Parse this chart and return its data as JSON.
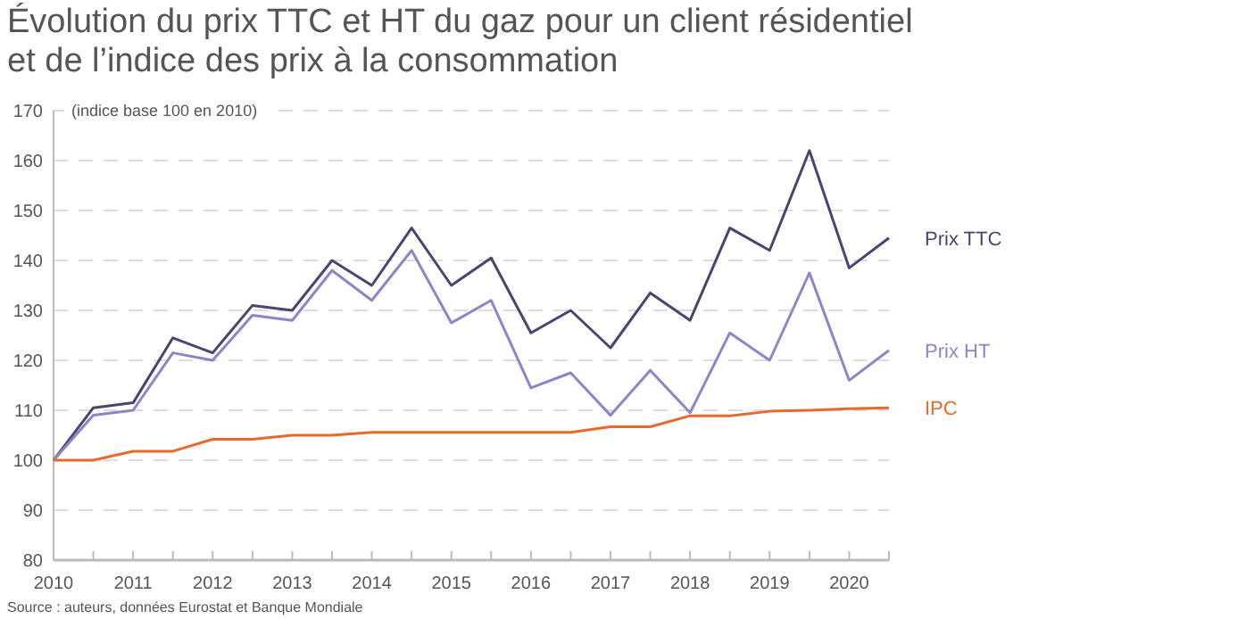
{
  "chart_data": {
    "type": "line",
    "title": "Évolution du prix TTC et HT du gaz pour un client résidentiel et de l’indice des prix à la consommation",
    "ylabel": "(indice base 100 en 2010)",
    "annotations": [
      "Source : auteurs, données Eurostat et Banque Mondiale"
    ],
    "x": [
      2010,
      2010.5,
      2011,
      2011.5,
      2012,
      2012.5,
      2013,
      2013.5,
      2014,
      2014.5,
      2015,
      2015.5,
      2016,
      2016.5,
      2017,
      2017.5,
      2018,
      2018.5,
      2019,
      2019.5,
      2020,
      2020.5
    ],
    "series": [
      {
        "name": "Prix TTC",
        "color": "#4a4570",
        "values": [
          100,
          110.5,
          111.5,
          124.5,
          121.5,
          131,
          130,
          140,
          135,
          146.5,
          135,
          140.5,
          125.5,
          130,
          122.5,
          133.5,
          128,
          146.5,
          142,
          162,
          138.5,
          144.5
        ]
      },
      {
        "name": "Prix HT",
        "color": "#8c86c8",
        "values": [
          100,
          109,
          110,
          121.5,
          120,
          129,
          128,
          138,
          132,
          142,
          127.5,
          132,
          114.5,
          117.5,
          109,
          118,
          109.5,
          125.5,
          120,
          137.5,
          116,
          122
        ]
      },
      {
        "name": "IPC",
        "color": "#e8692a",
        "values": [
          100,
          100,
          101.8,
          101.8,
          104.2,
          104.2,
          105,
          105,
          105.6,
          105.6,
          105.6,
          105.6,
          105.6,
          105.6,
          106.7,
          106.7,
          108.9,
          108.9,
          109.8,
          110,
          110.3,
          110.5
        ]
      }
    ],
    "xlim": [
      2010,
      2020.5
    ],
    "xticks": [
      2010,
      {
        "value": 2010.5,
        "label": null
      },
      2011,
      {
        "value": 2011.5,
        "label": null
      },
      2012,
      {
        "value": 2012.5,
        "label": null
      },
      2013,
      {
        "value": 2013.5,
        "label": null
      },
      2014,
      {
        "value": 2014.5,
        "label": null
      },
      2015,
      {
        "value": 2015.5,
        "label": null
      },
      2016,
      {
        "value": 2016.5,
        "label": null
      },
      2017,
      {
        "value": 2017.5,
        "label": null
      },
      2018,
      {
        "value": 2018.5,
        "label": null
      },
      2019,
      {
        "value": 2019.5,
        "label": null
      },
      2020,
      {
        "value": 2020.5,
        "label": null
      }
    ],
    "ylim": [
      80,
      170
    ],
    "yticks": [
      80,
      90,
      100,
      110,
      120,
      130,
      140,
      150,
      160,
      170
    ],
    "grid": "y",
    "marker": "none",
    "line_style": "solid"
  }
}
